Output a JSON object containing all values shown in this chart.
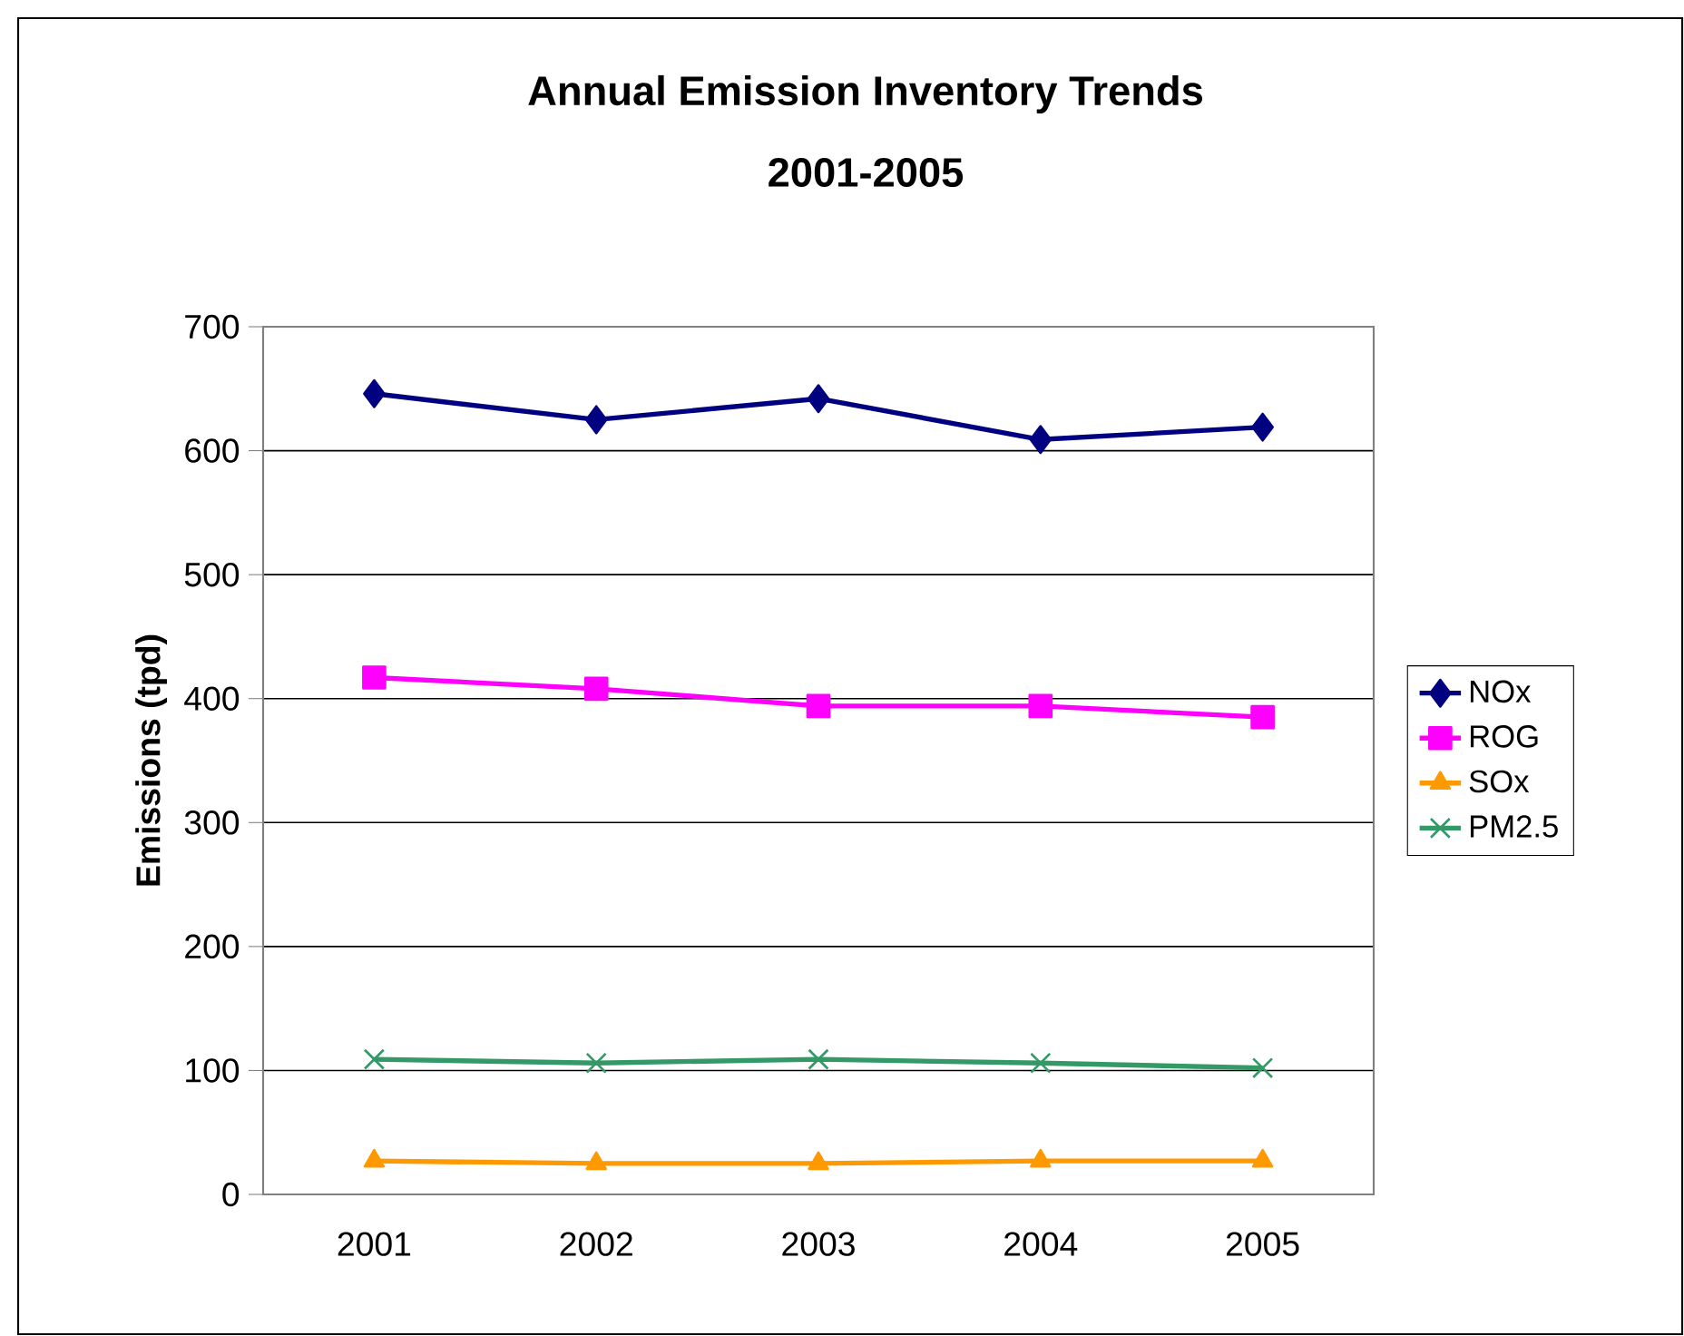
{
  "chart_data": {
    "type": "line",
    "title": "Annual Emission Inventory Trends",
    "subtitle": "2001-2005",
    "ylabel": "Emissions (tpd)",
    "categories": [
      "2001",
      "2002",
      "2003",
      "2004",
      "2005"
    ],
    "ylim": [
      0,
      700
    ],
    "yticks": [
      0,
      100,
      200,
      300,
      400,
      500,
      600,
      700
    ],
    "grid": "y",
    "legend": "right",
    "series": [
      {
        "name": "NOx",
        "color": "#000080",
        "marker": "diamond",
        "values": [
          646,
          625,
          642,
          609,
          619
        ]
      },
      {
        "name": "ROG",
        "color": "#ff00ff",
        "marker": "square",
        "values": [
          417,
          408,
          394,
          394,
          385
        ]
      },
      {
        "name": "SOx",
        "color": "#ff9900",
        "marker": "triangle",
        "values": [
          27,
          25,
          25,
          27,
          27
        ]
      },
      {
        "name": "PM2.5",
        "color": "#339966",
        "marker": "cross",
        "values": [
          109,
          106,
          109,
          106,
          102
        ]
      }
    ]
  }
}
